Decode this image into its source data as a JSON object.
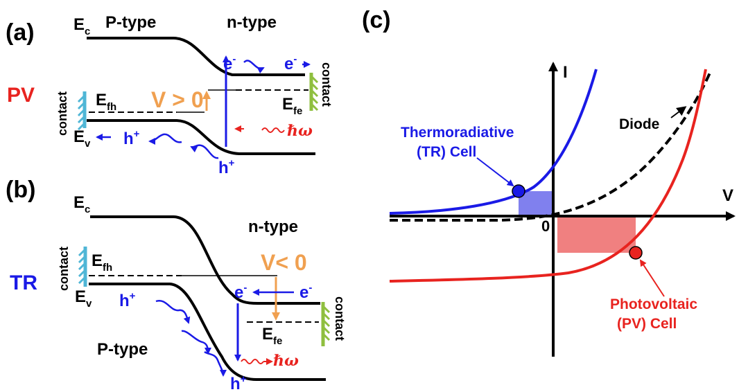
{
  "panel_a": {
    "label": "(a)",
    "side": "PV",
    "ec": "E",
    "ec_sub": "c",
    "left_type": "P-type",
    "right_type": "n-type",
    "efh": "E",
    "efh_sub": "fh",
    "efe": "E",
    "efe_sub": "fe",
    "ev": "E",
    "ev_sub": "v",
    "voltage": "V > 0",
    "contact_left": "contact",
    "contact_right": "contact",
    "e1": "e",
    "e2": "e",
    "e_sup": "-",
    "h1": "h",
    "h2": "h",
    "h_sup": "+",
    "photon": "ℏω"
  },
  "panel_b": {
    "label": "(b)",
    "side": "TR",
    "ec": "E",
    "ec_sub": "c",
    "right_type": "n-type",
    "left_type": "P-type",
    "efh": "E",
    "efh_sub": "fh",
    "efe": "E",
    "efe_sub": "fe",
    "ev": "E",
    "ev_sub": "v",
    "voltage": "V< 0",
    "contact_left": "contact",
    "contact_right": "contact",
    "e1": "e",
    "e2": "e",
    "e_sup": "-",
    "h1": "h",
    "h2": "h",
    "h_sup": "+",
    "photon": "ℏω"
  },
  "panel_c": {
    "label": "(c)",
    "axis_i": "I",
    "axis_v": "V",
    "origin": "0",
    "diode": "Diode",
    "tr_line1": "Thermoradiative",
    "tr_line2": "(TR) Cell",
    "pv_line1": "Photovoltaic",
    "pv_line2": "(PV) Cell"
  },
  "colors": {
    "pv": "#e8231f",
    "tr": "#1a1ae6",
    "arrow_blue": "#1a1ae6",
    "voltage_orange": "#f0a050",
    "contact_left": "#4fb6d6",
    "contact_right": "#8fbf3f",
    "pv_rect": "#f08080",
    "tr_rect": "#8080ee"
  }
}
